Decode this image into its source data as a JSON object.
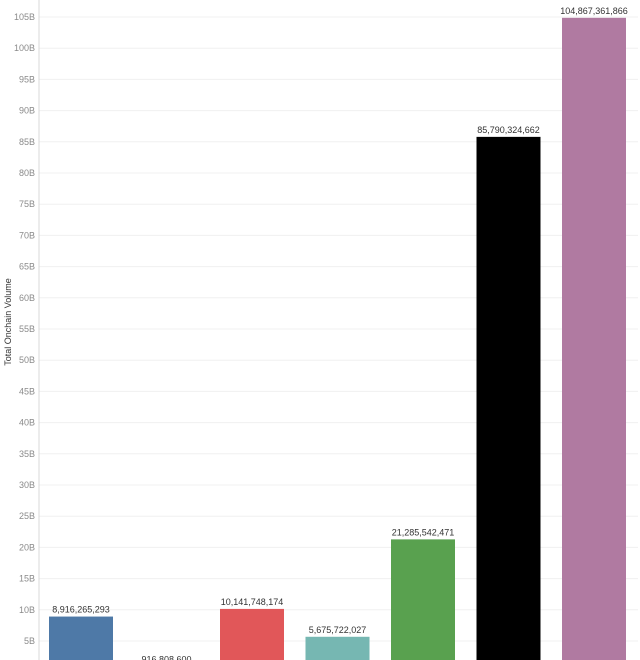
{
  "chart_data": {
    "type": "bar",
    "title": "",
    "xlabel": "",
    "ylabel": "Total Onchain Volume",
    "ylim": [
      0,
      105000000000
    ],
    "yticks": [
      {
        "value": 5000000000,
        "label": "5B"
      },
      {
        "value": 10000000000,
        "label": "10B"
      },
      {
        "value": 15000000000,
        "label": "15B"
      },
      {
        "value": 20000000000,
        "label": "20B"
      },
      {
        "value": 25000000000,
        "label": "25B"
      },
      {
        "value": 30000000000,
        "label": "30B"
      },
      {
        "value": 35000000000,
        "label": "35B"
      },
      {
        "value": 40000000000,
        "label": "40B"
      },
      {
        "value": 45000000000,
        "label": "45B"
      },
      {
        "value": 50000000000,
        "label": "50B"
      },
      {
        "value": 55000000000,
        "label": "55B"
      },
      {
        "value": 60000000000,
        "label": "60B"
      },
      {
        "value": 65000000000,
        "label": "65B"
      },
      {
        "value": 70000000000,
        "label": "70B"
      },
      {
        "value": 75000000000,
        "label": "75B"
      },
      {
        "value": 80000000000,
        "label": "80B"
      },
      {
        "value": 85000000000,
        "label": "85B"
      },
      {
        "value": 90000000000,
        "label": "90B"
      },
      {
        "value": 95000000000,
        "label": "95B"
      },
      {
        "value": 100000000000,
        "label": "100B"
      },
      {
        "value": 105000000000,
        "label": "105B"
      }
    ],
    "grid": true,
    "legend": "none",
    "bars": [
      {
        "value": 8916265293,
        "label": "8,916,265,293",
        "color": "#4e79a7"
      },
      {
        "value": 916808600,
        "label": "916,808,600",
        "color": "#f28e2b"
      },
      {
        "value": 10141748174,
        "label": "10,141,748,174",
        "color": "#e15759"
      },
      {
        "value": 5675722027,
        "label": "5,675,722,027",
        "color": "#76b7b2"
      },
      {
        "value": 21285542471,
        "label": "21,285,542,471",
        "color": "#59a14f"
      },
      {
        "value": 85790324662,
        "label": "85,790,324,662",
        "color": "#000000"
      },
      {
        "value": 104867361866,
        "label": "104,867,361,866",
        "color": "#b07aa1"
      }
    ]
  }
}
